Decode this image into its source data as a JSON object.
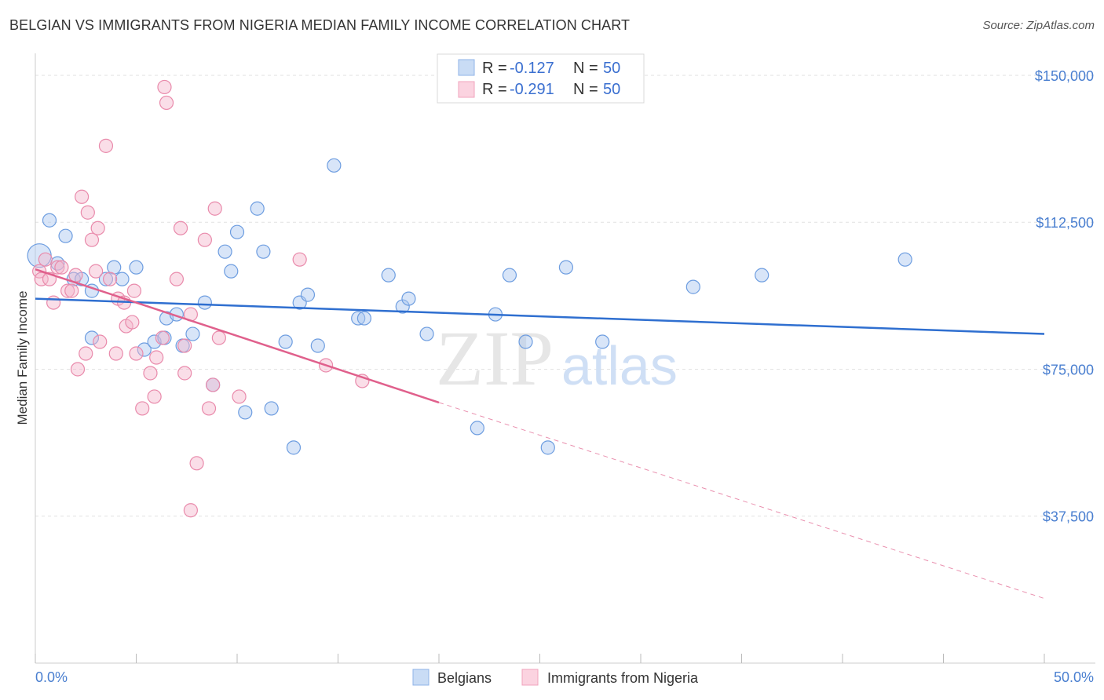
{
  "header": {
    "title": "BELGIAN VS IMMIGRANTS FROM NIGERIA MEDIAN FAMILY INCOME CORRELATION CHART",
    "source": "Source: ZipAtlas.com"
  },
  "watermark": {
    "zip": "ZIP",
    "atlas": "atlas"
  },
  "legend": {
    "r_label": "R =",
    "n_label": "N =",
    "rows": [
      {
        "r": "-0.127",
        "n": "50",
        "color": "#a9c6f0"
      },
      {
        "r": "-0.291",
        "n": "50",
        "color": "#f5b6cb"
      }
    ]
  },
  "bottom_legend": [
    {
      "label": "Belgians",
      "color": "#a9c6f0"
    },
    {
      "label": "Immigrants from Nigeria",
      "color": "#f5b6cb"
    }
  ],
  "colors": {
    "blue_point": "#a9c6f0",
    "blue_line": "#2f6fd0",
    "pink_point": "#f5b6cb",
    "pink_line": "#e0608c",
    "tick_text": "#4a7fd0"
  },
  "chart_data": {
    "type": "scatter",
    "title": "BELGIAN VS IMMIGRANTS FROM NIGERIA MEDIAN FAMILY INCOME CORRELATION CHART",
    "xlabel": "",
    "ylabel": "Median Family Income",
    "xlim": [
      0,
      50
    ],
    "ylim": [
      0,
      155000
    ],
    "x_tick_labels": [
      "0.0%",
      "50.0%"
    ],
    "y_ticks": [
      37500,
      75000,
      112500,
      150000
    ],
    "y_tick_labels": [
      "$37,500",
      "$75,000",
      "$112,500",
      "$150,000"
    ],
    "grid": true,
    "legend_position": "top-center",
    "series": [
      {
        "name": "Belgians",
        "color": "#a9c6f0",
        "points": [
          [
            0.2,
            104000
          ],
          [
            0.7,
            113000
          ],
          [
            1.1,
            102000
          ],
          [
            1.5,
            109000
          ],
          [
            1.9,
            98000
          ],
          [
            2.3,
            98000
          ],
          [
            2.8,
            95000
          ],
          [
            2.8,
            83000
          ],
          [
            3.5,
            98000
          ],
          [
            3.9,
            101000
          ],
          [
            4.3,
            98000
          ],
          [
            5.0,
            101000
          ],
          [
            5.4,
            80000
          ],
          [
            5.9,
            82000
          ],
          [
            6.4,
            83000
          ],
          [
            6.5,
            88000
          ],
          [
            7.0,
            89000
          ],
          [
            7.3,
            81000
          ],
          [
            7.8,
            84000
          ],
          [
            8.4,
            92000
          ],
          [
            8.8,
            71000
          ],
          [
            9.4,
            105000
          ],
          [
            9.7,
            100000
          ],
          [
            10.0,
            110000
          ],
          [
            10.4,
            64000
          ],
          [
            11.0,
            116000
          ],
          [
            11.3,
            105000
          ],
          [
            11.7,
            65000
          ],
          [
            12.4,
            82000
          ],
          [
            12.8,
            55000
          ],
          [
            13.1,
            92000
          ],
          [
            13.5,
            94000
          ],
          [
            14.0,
            81000
          ],
          [
            14.8,
            127000
          ],
          [
            16.0,
            88000
          ],
          [
            16.3,
            88000
          ],
          [
            17.5,
            99000
          ],
          [
            18.2,
            91000
          ],
          [
            18.5,
            93000
          ],
          [
            19.4,
            84000
          ],
          [
            21.9,
            60000
          ],
          [
            22.8,
            89000
          ],
          [
            23.5,
            99000
          ],
          [
            24.3,
            82000
          ],
          [
            25.4,
            55000
          ],
          [
            26.3,
            101000
          ],
          [
            28.1,
            82000
          ],
          [
            32.6,
            96000
          ],
          [
            36.0,
            99000
          ],
          [
            43.1,
            103000
          ]
        ]
      },
      {
        "name": "Immigrants from Nigeria",
        "color": "#f5b6cb",
        "points": [
          [
            0.2,
            100000
          ],
          [
            0.3,
            98000
          ],
          [
            0.5,
            103000
          ],
          [
            0.7,
            98000
          ],
          [
            0.9,
            92000
          ],
          [
            1.1,
            101000
          ],
          [
            1.3,
            101000
          ],
          [
            1.6,
            95000
          ],
          [
            1.8,
            95000
          ],
          [
            2.0,
            99000
          ],
          [
            2.1,
            75000
          ],
          [
            2.3,
            119000
          ],
          [
            2.5,
            79000
          ],
          [
            2.6,
            115000
          ],
          [
            2.8,
            108000
          ],
          [
            3.0,
            100000
          ],
          [
            3.1,
            111000
          ],
          [
            3.2,
            82000
          ],
          [
            3.5,
            132000
          ],
          [
            3.7,
            98000
          ],
          [
            4.0,
            79000
          ],
          [
            4.1,
            93000
          ],
          [
            4.4,
            92000
          ],
          [
            4.5,
            86000
          ],
          [
            4.8,
            87000
          ],
          [
            4.9,
            95000
          ],
          [
            5.0,
            79000
          ],
          [
            5.3,
            65000
          ],
          [
            5.7,
            74000
          ],
          [
            5.9,
            68000
          ],
          [
            6.3,
            83000
          ],
          [
            7.4,
            74000
          ],
          [
            6.5,
            143000
          ],
          [
            7.0,
            98000
          ],
          [
            7.2,
            111000
          ],
          [
            7.4,
            81000
          ],
          [
            7.7,
            89000
          ],
          [
            7.7,
            39000
          ],
          [
            8.0,
            51000
          ],
          [
            8.4,
            108000
          ],
          [
            8.6,
            65000
          ],
          [
            8.8,
            71000
          ],
          [
            8.9,
            116000
          ],
          [
            9.1,
            83000
          ],
          [
            10.1,
            68000
          ],
          [
            6.4,
            147000
          ],
          [
            13.1,
            103000
          ],
          [
            14.4,
            76000
          ],
          [
            16.2,
            72000
          ],
          [
            6.0,
            78000
          ]
        ]
      }
    ],
    "trendlines": [
      {
        "series": "Belgians",
        "x": [
          0,
          50
        ],
        "y": [
          93000,
          84000
        ]
      },
      {
        "series": "Immigrants from Nigeria",
        "x": [
          0,
          20
        ],
        "y": [
          100500,
          66500
        ],
        "dashed_extension_x": [
          20,
          50
        ],
        "dashed_extension_y": [
          66500,
          16500
        ]
      }
    ]
  }
}
